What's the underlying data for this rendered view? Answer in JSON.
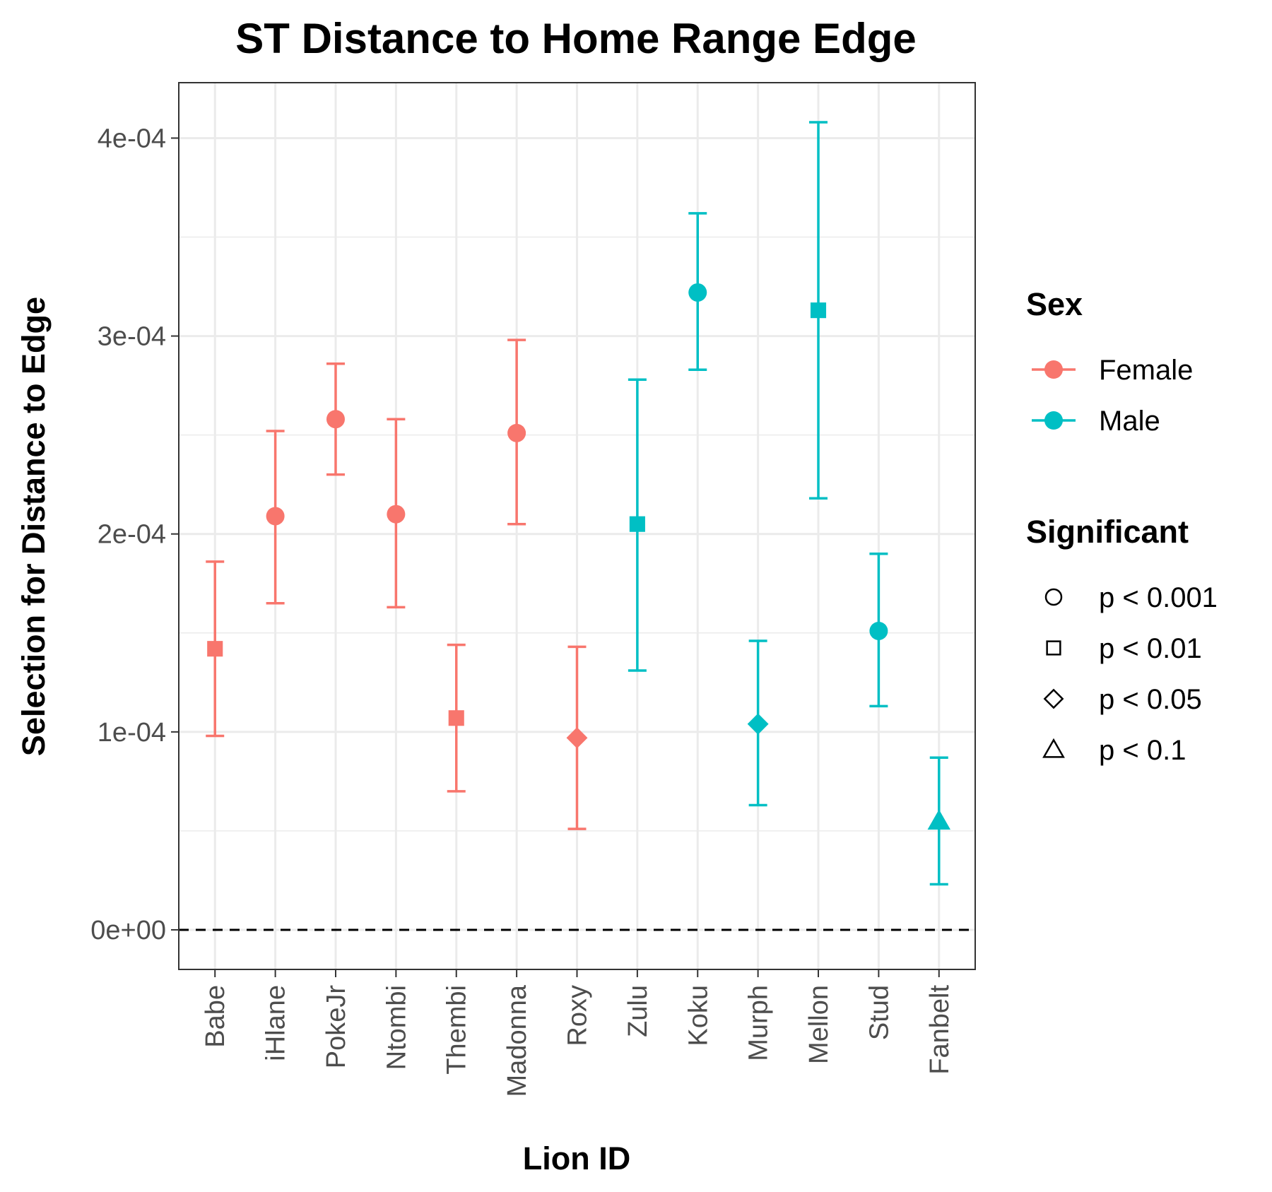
{
  "chart_data": {
    "type": "scatter",
    "title": "ST Distance to Home Range Edge",
    "xlabel": "Lion ID",
    "ylabel": "Selection for Distance to Edge",
    "ylim": [
      -2e-05,
      0.000428
    ],
    "y_ticks": [
      0,
      0.0001,
      0.0002,
      0.0003,
      0.0004
    ],
    "y_tick_labels": [
      "0e+00",
      "1e-04",
      "2e-04",
      "3e-04",
      "4e-04"
    ],
    "reference_line": {
      "y": 0,
      "style": "dashed"
    },
    "grid": true,
    "categories": [
      "Babe",
      "iHlane",
      "PokeJr",
      "Ntombi",
      "Thembi",
      "Madonna",
      "Roxy",
      "Zulu",
      "Koku",
      "Murph",
      "Mellon",
      "Stud",
      "Fanbelt"
    ],
    "points": [
      {
        "id": "Babe",
        "sex": "Female",
        "significant": "p < 0.01",
        "y": 0.000142,
        "ymin": 9.8e-05,
        "ymax": 0.000186
      },
      {
        "id": "iHlane",
        "sex": "Female",
        "significant": "p < 0.001",
        "y": 0.000209,
        "ymin": 0.000165,
        "ymax": 0.000252
      },
      {
        "id": "PokeJr",
        "sex": "Female",
        "significant": "p < 0.001",
        "y": 0.000258,
        "ymin": 0.00023,
        "ymax": 0.000286
      },
      {
        "id": "Ntombi",
        "sex": "Female",
        "significant": "p < 0.001",
        "y": 0.00021,
        "ymin": 0.000163,
        "ymax": 0.000258
      },
      {
        "id": "Thembi",
        "sex": "Female",
        "significant": "p < 0.01",
        "y": 0.000107,
        "ymin": 7e-05,
        "ymax": 0.000144
      },
      {
        "id": "Madonna",
        "sex": "Female",
        "significant": "p < 0.001",
        "y": 0.000251,
        "ymin": 0.000205,
        "ymax": 0.000298
      },
      {
        "id": "Roxy",
        "sex": "Female",
        "significant": "p < 0.05",
        "y": 9.7e-05,
        "ymin": 5.1e-05,
        "ymax": 0.000143
      },
      {
        "id": "Zulu",
        "sex": "Male",
        "significant": "p < 0.01",
        "y": 0.000205,
        "ymin": 0.000131,
        "ymax": 0.000278
      },
      {
        "id": "Koku",
        "sex": "Male",
        "significant": "p < 0.001",
        "y": 0.000322,
        "ymin": 0.000283,
        "ymax": 0.000362
      },
      {
        "id": "Murph",
        "sex": "Male",
        "significant": "p < 0.05",
        "y": 0.000104,
        "ymin": 6.3e-05,
        "ymax": 0.000146
      },
      {
        "id": "Mellon",
        "sex": "Male",
        "significant": "p < 0.01",
        "y": 0.000313,
        "ymin": 0.000218,
        "ymax": 0.000408
      },
      {
        "id": "Stud",
        "sex": "Male",
        "significant": "p < 0.001",
        "y": 0.000151,
        "ymin": 0.000113,
        "ymax": 0.00019
      },
      {
        "id": "Fanbelt",
        "sex": "Male",
        "significant": "p < 0.1",
        "y": 5.5e-05,
        "ymin": 2.3e-05,
        "ymax": 8.7e-05
      }
    ],
    "legend": {
      "placement": "right",
      "sex": {
        "title": "Sex",
        "entries": [
          {
            "label": "Female",
            "color": "#F8766D"
          },
          {
            "label": "Male",
            "color": "#00BFC4"
          }
        ]
      },
      "significant": {
        "title": "Significant",
        "entries": [
          {
            "label": "p < 0.001",
            "shape": "circle"
          },
          {
            "label": "p < 0.01",
            "shape": "square"
          },
          {
            "label": "p < 0.05",
            "shape": "diamond"
          },
          {
            "label": "p < 0.1",
            "shape": "triangle"
          }
        ]
      }
    },
    "colors": {
      "Female": "#F8766D",
      "Male": "#00BFC4",
      "grid": "#ebebeb",
      "panel_border": "#333333"
    }
  }
}
